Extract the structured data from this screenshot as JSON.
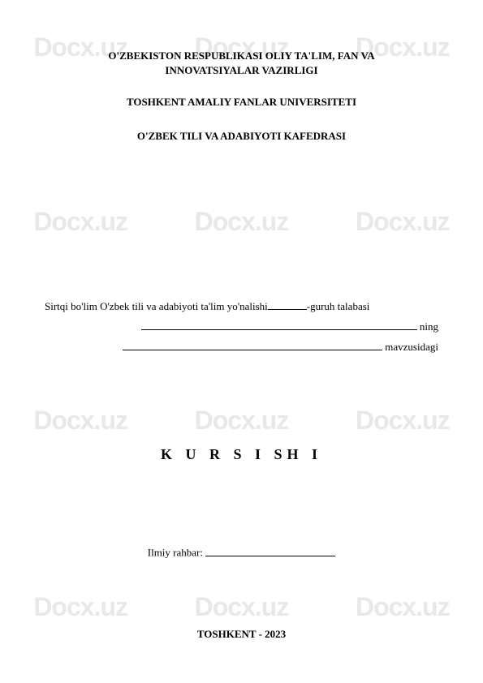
{
  "watermark": {
    "text": "Docx.uz",
    "color": "#e8e8e8",
    "font_size": 32,
    "font_family": "Arial",
    "rows": 4,
    "cols": 3
  },
  "header": {
    "line1": "O'ZBEKISTON RESPUBLIKASI OLIY TA'LIM, FAN VA",
    "line2": "INNOVATSIYALAR VAZIRLIGI"
  },
  "university": "TOSHKENT AMALIY FANLAR UNIVERSITETI",
  "department": "O'ZBEK TILI VA ADABIYOTI KAFEDRASI",
  "fill": {
    "prefix": "Sirtqi bo'lim O'zbek tili va adabiyoti ta'lim yo'nalishi",
    "group_suffix": "-guruh talabasi",
    "ning": " ning",
    "mavzu": " mavzusidagi"
  },
  "title": "K U R S I SH I",
  "advisor_label": "Ilmiy rahbar: ",
  "footer": "TOSHKENT - 2023",
  "colors": {
    "text": "#000000",
    "background": "#ffffff"
  }
}
